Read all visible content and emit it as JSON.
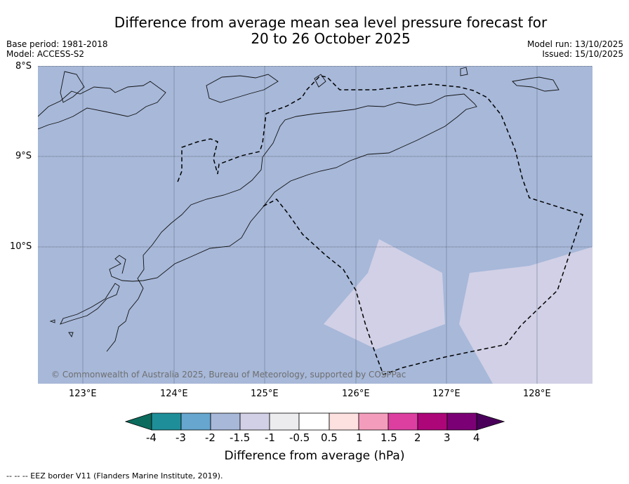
{
  "title": {
    "line1": "Difference from average mean sea level pressure forecast for",
    "line2": "20 to 26 October 2025"
  },
  "meta": {
    "base_period": "Base period: 1981-2018",
    "model": "Model: ACCESS-S2",
    "model_run": "Model run: 13/10/2025",
    "issued": "Issued: 15/10/2025"
  },
  "axes": {
    "lat_labels": [
      "8°S",
      "9°S",
      "10°S"
    ],
    "lon_labels": [
      "123°E",
      "124°E",
      "125°E",
      "126°E",
      "127°E",
      "128°E"
    ]
  },
  "map": {
    "ocean_color": "#a7b8d9",
    "anomaly_color": "#d1d0e6",
    "copyright": "© Commonwealth of Australia 2025, Bureau of Meteorology, supported by COSPPac"
  },
  "colorbar": {
    "label": "Difference from average (hPa)",
    "ticks": [
      "-4",
      "-3",
      "-2",
      "-1.5",
      "-1",
      "-0.5",
      "0.5",
      "1",
      "1.5",
      "2",
      "3",
      "4"
    ],
    "colors": [
      "#0b6b5d",
      "#1e8f99",
      "#66a6cf",
      "#a7b8d9",
      "#d1d0e6",
      "#ececef",
      "#ffffff",
      "#fde0e0",
      "#f49cbb",
      "#dd3fa1",
      "#ad0679",
      "#7b0075",
      "#4a005b"
    ]
  },
  "footer": {
    "legend": "--  --  -- EEZ border V11 (Flanders Marine Institute, 2019)."
  }
}
